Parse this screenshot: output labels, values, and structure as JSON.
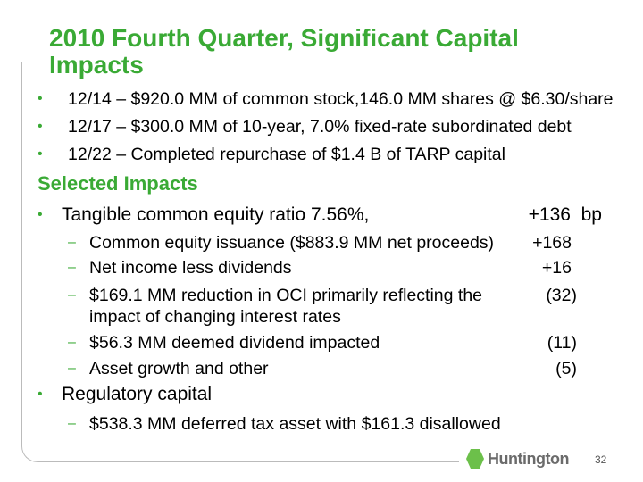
{
  "title": "2010 Fourth Quarter, Significant Capital Impacts",
  "bullets": [
    "12/14 – $920.0 MM of common stock,146.0 MM shares @ $6.30/share",
    "12/17 – $300.0 MM of 10-year, 7.0% fixed-rate subordinated debt",
    "12/22 – Completed repurchase of $1.4 B of TARP capital"
  ],
  "section": "Selected Impacts",
  "impacts": {
    "main": {
      "label": "Tangible common equity ratio 7.56%,",
      "value": "+136  bp"
    },
    "items": [
      {
        "label": "Common equity issuance ($883.9 MM net proceeds)",
        "value": "+168"
      },
      {
        "label": "Net income less dividends",
        "value": "+16"
      },
      {
        "label": "$169.1 MM reduction in OCI primarily reflecting the",
        "label2": "impact of changing interest rates",
        "value": "(32)"
      },
      {
        "label": "$56.3 MM deemed dividend impacted",
        "value": "(11)"
      },
      {
        "label": "Asset growth and other",
        "value": "(5)"
      }
    ],
    "regulatory": "Regulatory capital",
    "regulatory_item": "$538.3 MM deferred tax asset with $161.3 disallowed"
  },
  "bullet_char": "•",
  "dash_char": "–",
  "logo": "Huntington",
  "page": "32"
}
